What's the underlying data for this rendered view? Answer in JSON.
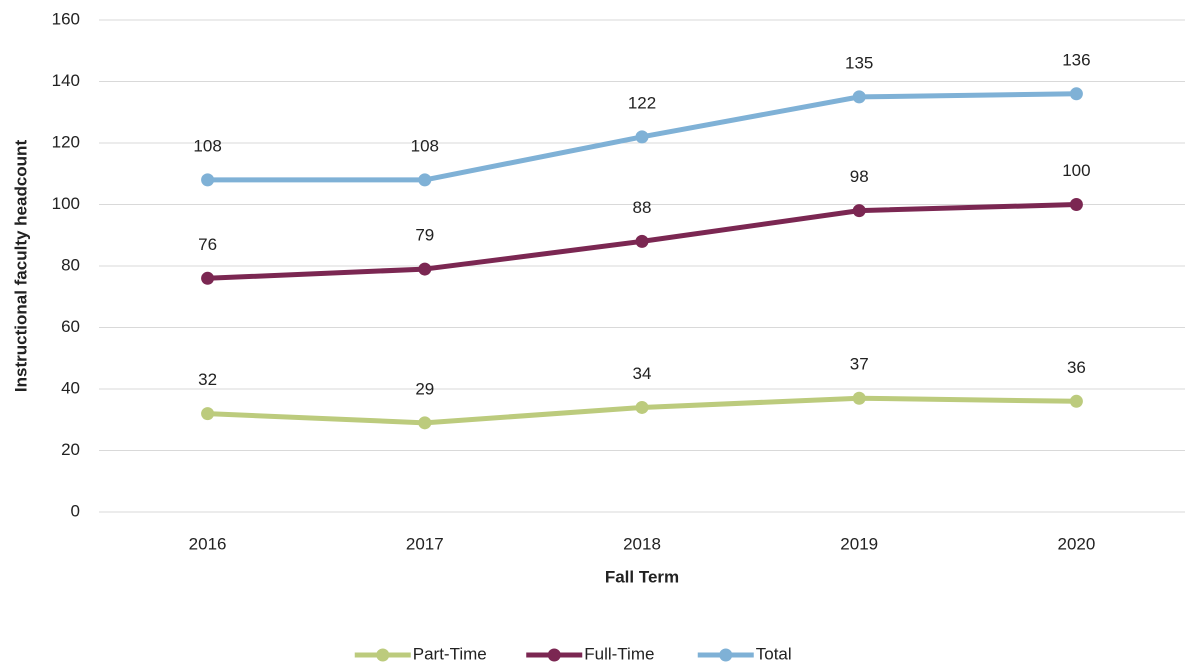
{
  "chart_data": {
    "type": "line",
    "x_label": "Fall Term",
    "y_label": "Instructional faculty headcount",
    "categories": [
      "2016",
      "2017",
      "2018",
      "2019",
      "2020"
    ],
    "series": [
      {
        "name": "Part-Time",
        "color": "#bccb7d",
        "values": [
          32,
          29,
          34,
          37,
          36
        ]
      },
      {
        "name": "Full-Time",
        "color": "#7b2752",
        "values": [
          76,
          79,
          88,
          98,
          100
        ]
      },
      {
        "name": "Total",
        "color": "#7fb1d6",
        "values": [
          108,
          108,
          122,
          135,
          136
        ]
      }
    ],
    "ylim": [
      0,
      160
    ],
    "yticks": [
      0,
      20,
      40,
      60,
      80,
      100,
      120,
      140,
      160
    ],
    "grid": true,
    "legend": "bottom"
  }
}
